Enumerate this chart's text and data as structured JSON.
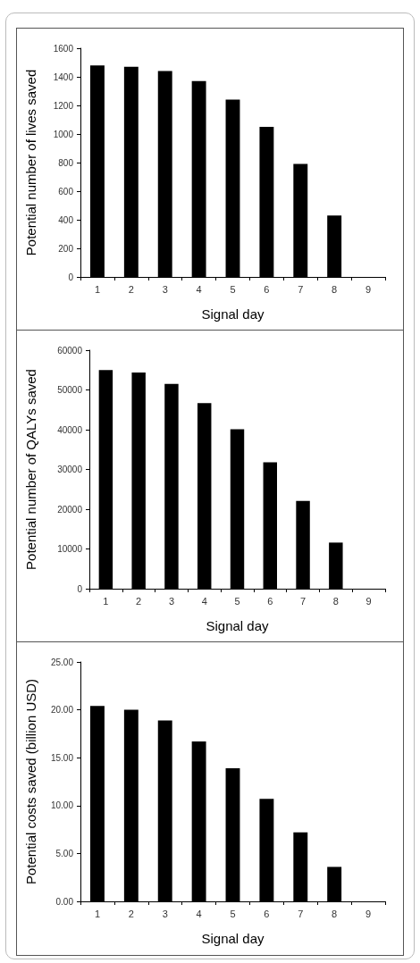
{
  "chart_data": [
    {
      "type": "bar",
      "categories": [
        "1",
        "2",
        "3",
        "4",
        "5",
        "6",
        "7",
        "8",
        "9"
      ],
      "values": [
        1480,
        1470,
        1440,
        1370,
        1240,
        1050,
        790,
        430,
        0
      ],
      "color": "#000000",
      "xlabel": "Signal day",
      "ylabel": "Potential number of lives saved",
      "ylim": [
        0,
        1600
      ],
      "yticks": [
        0,
        200,
        400,
        600,
        800,
        1000,
        1200,
        1400,
        1600
      ]
    },
    {
      "type": "bar",
      "categories": [
        "1",
        "2",
        "3",
        "4",
        "5",
        "6",
        "7",
        "8",
        "9"
      ],
      "values": [
        55000,
        54400,
        51500,
        46700,
        40100,
        31800,
        22100,
        11600,
        0
      ],
      "color": "#000000",
      "xlabel": "Signal day",
      "ylabel": "Potential number of QALYs saved",
      "ylim": [
        0,
        60000
      ],
      "yticks": [
        0,
        10000,
        20000,
        30000,
        40000,
        50000,
        60000
      ]
    },
    {
      "type": "bar",
      "categories": [
        "1",
        "2",
        "3",
        "4",
        "5",
        "6",
        "7",
        "8",
        "9"
      ],
      "values": [
        20.4,
        20.0,
        18.9,
        16.7,
        13.9,
        10.7,
        7.2,
        3.6,
        0
      ],
      "color": "#000000",
      "xlabel": "Signal day",
      "ylabel": "Potential costs saved (billion USD)",
      "ylim": [
        0,
        25
      ],
      "yticks": [
        {
          "value": 0,
          "label": "0.00"
        },
        {
          "value": 5,
          "label": "5.00"
        },
        {
          "value": 10,
          "label": "10.00"
        },
        {
          "value": 15,
          "label": "15.00"
        },
        {
          "value": 20,
          "label": "20.00"
        },
        {
          "value": 25,
          "label": "25.00"
        }
      ]
    }
  ]
}
